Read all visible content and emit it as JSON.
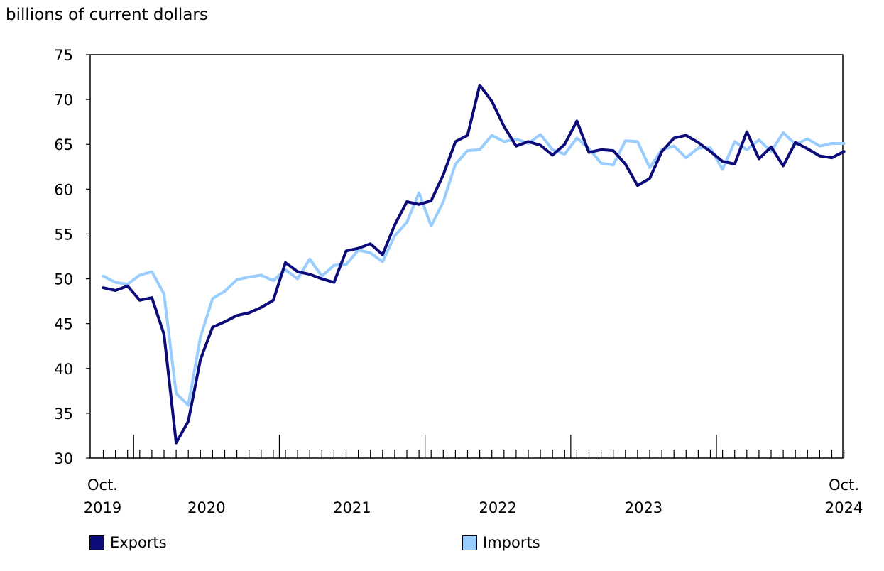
{
  "chart_data": {
    "type": "line",
    "ylabel": "billions of current dollars",
    "xlabel": "",
    "ylim": [
      30,
      75
    ],
    "yticks": [
      30,
      35,
      40,
      45,
      50,
      55,
      60,
      65,
      70,
      75
    ],
    "grid": false,
    "legend_position": "bottom",
    "x_start": "Oct. 2019",
    "x_end": "Oct. 2024",
    "x_tick_labels": [
      {
        "line1": "Oct.",
        "line2": "2019"
      },
      {
        "line1": "",
        "line2": "2020"
      },
      {
        "line1": "",
        "line2": "2021"
      },
      {
        "line1": "",
        "line2": "2022"
      },
      {
        "line1": "",
        "line2": "2023"
      },
      {
        "line1": "Oct.",
        "line2": "2024"
      }
    ],
    "series": [
      {
        "name": "Exports",
        "color": "#0b0b7a",
        "values": [
          49.0,
          48.7,
          49.2,
          47.6,
          47.9,
          43.8,
          31.7,
          34.1,
          41.0,
          44.6,
          45.2,
          45.9,
          46.2,
          46.8,
          47.6,
          51.8,
          50.8,
          50.5,
          50.0,
          49.6,
          53.1,
          53.4,
          53.9,
          52.7,
          56.0,
          58.6,
          58.3,
          58.7,
          61.6,
          65.3,
          66.0,
          71.6,
          69.8,
          67.0,
          64.8,
          65.3,
          64.9,
          63.8,
          65.0,
          67.6,
          64.1,
          64.4,
          64.3,
          62.8,
          60.4,
          61.2,
          64.2,
          65.7,
          66.0,
          65.2,
          64.2,
          63.1,
          62.8,
          66.4,
          63.4,
          64.7,
          62.6,
          65.2,
          64.5,
          63.7,
          63.5,
          64.2
        ],
        "end_value": 64.2
      },
      {
        "name": "Imports",
        "color": "#99ccff",
        "values": [
          50.3,
          49.6,
          49.4,
          50.4,
          50.8,
          48.3,
          37.2,
          35.9,
          43.5,
          47.8,
          48.6,
          49.9,
          50.2,
          50.4,
          49.8,
          51.0,
          50.0,
          52.2,
          50.3,
          51.5,
          51.6,
          53.2,
          52.9,
          51.9,
          54.8,
          56.3,
          59.6,
          55.9,
          58.6,
          62.8,
          64.3,
          64.4,
          66.0,
          65.3,
          65.6,
          65.1,
          66.1,
          64.4,
          63.9,
          65.7,
          64.5,
          62.9,
          62.7,
          65.4,
          65.3,
          62.4,
          64.4,
          64.8,
          63.5,
          64.6,
          64.6,
          62.2,
          65.3,
          64.4,
          65.5,
          64.2,
          66.3,
          65.0,
          65.6,
          64.8,
          65.1,
          65.1
        ]
      }
    ]
  }
}
